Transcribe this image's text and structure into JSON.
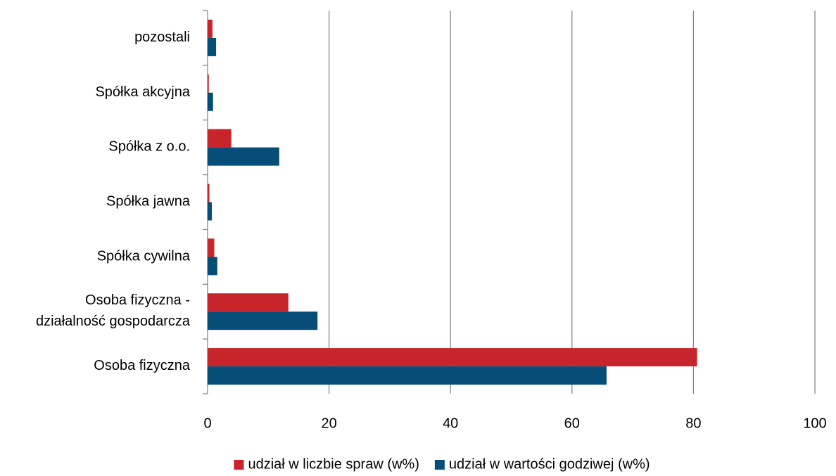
{
  "chart_data": {
    "type": "bar",
    "orientation": "horizontal",
    "title": "",
    "xlabel": "",
    "ylabel": "",
    "xlim": [
      0,
      100
    ],
    "x_ticks": [
      0,
      20,
      40,
      60,
      80,
      100
    ],
    "grid": "vertical",
    "legend_position": "bottom",
    "categories": [
      "Osoba fizyczna",
      "Osoba fizyczna - działalność gospodarcza",
      "Spółka cywilna",
      "Spółka jawna",
      "Spółka z o.o.",
      "Spółka akcyjna",
      "pozostali"
    ],
    "category_label_lines": [
      [
        "Osoba fizyczna"
      ],
      [
        "Osoba fizyczna -",
        "działalność gospodarcza"
      ],
      [
        "Spółka cywilna"
      ],
      [
        "Spółka jawna"
      ],
      [
        "Spółka z o.o."
      ],
      [
        "Spółka akcyjna"
      ],
      [
        "pozostali"
      ]
    ],
    "series": [
      {
        "name": "udział w liczbie spraw (w%)",
        "color": "#c8242b",
        "values": [
          80.6,
          13.3,
          1.1,
          0.3,
          3.9,
          0.2,
          0.8
        ]
      },
      {
        "name": "udział w wartości godziwej (w%)",
        "color": "#064e78",
        "values": [
          65.7,
          18.1,
          1.6,
          0.7,
          11.8,
          0.9,
          1.4
        ]
      }
    ],
    "colors": {
      "gridline": "#888888",
      "axis": "#888888",
      "text": "#000000"
    }
  }
}
